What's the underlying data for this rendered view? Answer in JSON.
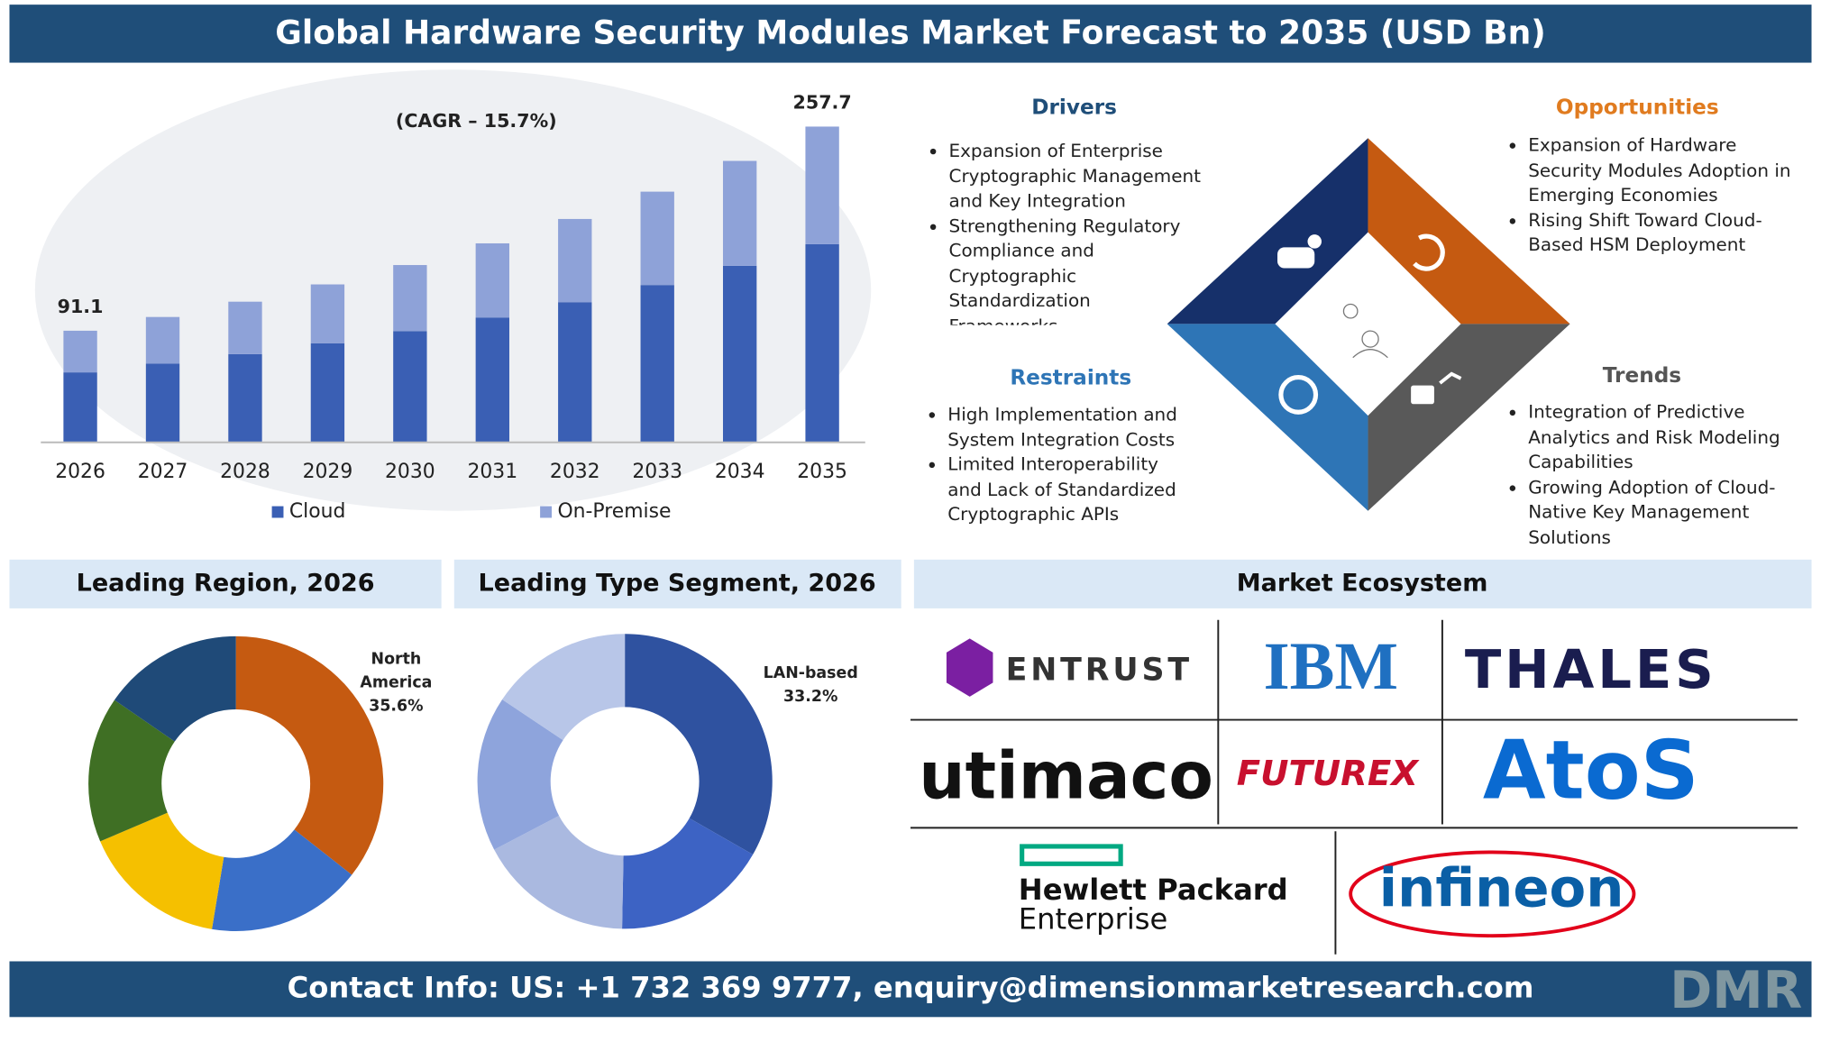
{
  "header": {
    "title": "Global Hardware Security Modules Market Forecast to 2035 (USD Bn)"
  },
  "chart_data": [
    {
      "type": "bar",
      "stacked": true,
      "cagr_label": "(CAGR – 15.7%)",
      "categories": [
        "2026",
        "2027",
        "2028",
        "2029",
        "2030",
        "2031",
        "2032",
        "2033",
        "2034",
        "2035"
      ],
      "series": [
        {
          "name": "Cloud",
          "color": "#3a5fb4",
          "values": [
            57.1,
            64.2,
            72.0,
            80.9,
            90.8,
            101.9,
            114.4,
            128.4,
            144.1,
            161.7
          ]
        },
        {
          "name": "On-Premise",
          "color": "#8ea2d8",
          "values": [
            34.0,
            38.1,
            42.8,
            48.0,
            53.9,
            60.5,
            67.9,
            76.2,
            85.6,
            96.0
          ]
        }
      ],
      "total_labels": [
        {
          "category": 0,
          "value": 91.1,
          "label": "91.1"
        },
        {
          "category": 9,
          "value": 257.7,
          "label": "257.7"
        }
      ],
      "ylim": [
        0,
        280
      ]
    },
    {
      "type": "donut",
      "title": "Leading Region, 2026",
      "categories": [
        "North America",
        null,
        null,
        null,
        null
      ],
      "values": [
        35.6,
        17,
        16,
        16,
        15.4
      ],
      "value_labels": [
        "35.6%",
        null,
        null,
        null,
        null
      ],
      "colors": [
        "#c55a11",
        "#3a6fc8",
        "#f5c000",
        "#3f6f24",
        "#1f4a78"
      ]
    },
    {
      "type": "donut",
      "title": "Leading Type Segment, 2026",
      "categories": [
        "LAN-based",
        null,
        null,
        null,
        null
      ],
      "values": [
        33.2,
        17,
        17,
        17,
        15.6
      ],
      "value_labels": [
        "33.2%",
        null,
        null,
        null,
        null
      ],
      "colors": [
        "#2f52a0",
        "#3d63c4",
        "#aab9e0",
        "#8ea4dc",
        "#b8c6e8"
      ]
    }
  ],
  "drivers": {
    "title": "Drivers",
    "items": [
      "Expansion of Enterprise Cryptographic Management and Key Integration",
      "Strengthening Regulatory Compliance and Cryptographic Standardization Frameworks"
    ]
  },
  "opportunities": {
    "title": "Opportunities",
    "items": [
      "Expansion of Hardware Security Modules Adoption in Emerging Economies",
      "Rising Shift Toward Cloud-Based HSM Deployment"
    ]
  },
  "restraints": {
    "title": "Restraints",
    "items": [
      "High Implementation and System Integration Costs",
      "Limited Interoperability and Lack of Standardized Cryptographic APIs"
    ]
  },
  "trends": {
    "title": "Trends",
    "items": [
      "Integration of Predictive Analytics and Risk Modeling Capabilities",
      "Growing Adoption of Cloud-Native Key Management Solutions"
    ]
  },
  "ecosystem": {
    "title": "Market Ecosystem",
    "logos": [
      "ENTRUST",
      "IBM",
      "THALES",
      "utimaco",
      "FUTUREX",
      "AtoS",
      "Hewlett Packard",
      "Enterprise",
      "infineon"
    ]
  },
  "footer": {
    "contact": "Contact Info: US: +1 732 369 9777, enquiry@dimensionmarketresearch.com",
    "brand": "DMR"
  }
}
